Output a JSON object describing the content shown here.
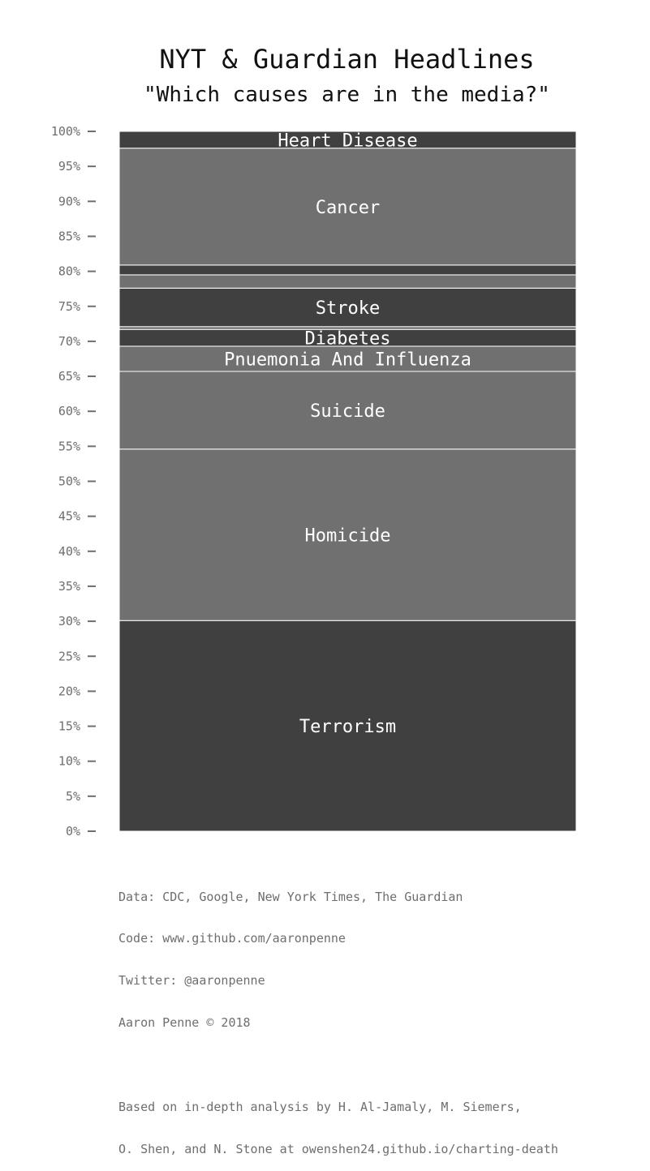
{
  "chart_data": {
    "type": "bar",
    "stacked": true,
    "title": "NYT & Guardian Headlines",
    "subtitle": "\"Which causes are in the media?\"",
    "ylim": [
      0,
      100
    ],
    "yticks": [
      "0%",
      "5%",
      "10%",
      "15%",
      "20%",
      "25%",
      "30%",
      "35%",
      "40%",
      "45%",
      "50%",
      "55%",
      "60%",
      "65%",
      "70%",
      "75%",
      "80%",
      "85%",
      "90%",
      "95%",
      "100%"
    ],
    "segments": [
      {
        "label": "Terrorism",
        "value": 30.1,
        "color": "#404040"
      },
      {
        "label": "Homicide",
        "value": 24.5,
        "color": "#707070"
      },
      {
        "label": "Suicide",
        "value": 11.1,
        "color": "#707070"
      },
      {
        "label": "Pnuemonia And Influenza",
        "value": 3.6,
        "color": "#707070"
      },
      {
        "label": "Diabetes",
        "value": 2.4,
        "color": "#404040"
      },
      {
        "label": "",
        "value": 0.4,
        "color": "#707070"
      },
      {
        "label": "Stroke",
        "value": 5.5,
        "color": "#404040"
      },
      {
        "label": "",
        "value": 1.9,
        "color": "#707070"
      },
      {
        "label": "",
        "value": 1.4,
        "color": "#404040"
      },
      {
        "label": "Cancer",
        "value": 16.7,
        "color": "#707070"
      },
      {
        "label": "Heart Disease",
        "value": 2.4,
        "color": "#404040"
      }
    ]
  },
  "footer": {
    "lines": [
      "Data: CDC, Google, New York Times, The Guardian",
      "Code: www.github.com/aaronpenne",
      "Twitter: @aaronpenne",
      "Aaron Penne © 2018"
    ],
    "note_lines": [
      "Based on in-depth analysis by H. Al-Jamaly, M. Siemers,",
      "O. Shen, and N. Stone at owenshen24.github.io/charting-death"
    ]
  },
  "colors": {
    "dark": "#404040",
    "light": "#707070",
    "tick_text": "#6e6e6e",
    "segment_text": "#ffffff"
  }
}
